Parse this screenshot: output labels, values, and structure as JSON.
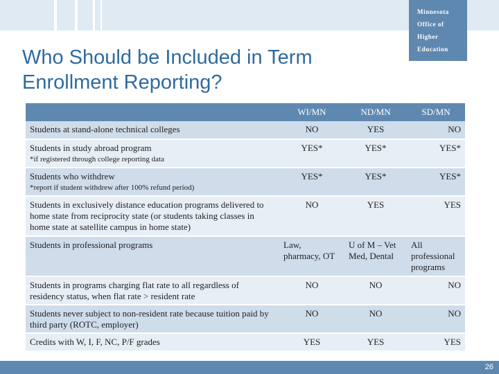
{
  "logo": {
    "line1": "Minnesota",
    "line2": "Office of",
    "line3": "Higher",
    "line4": "Education"
  },
  "title": {
    "line1": "Who Should be Included in Term",
    "line2": "Enrollment Reporting?"
  },
  "table": {
    "headers": [
      "",
      "WI/MN",
      "ND/MN",
      "SD/MN"
    ],
    "rows": [
      {
        "label": "Students at stand-alone technical colleges",
        "note": "",
        "wi": "NO",
        "nd": "YES",
        "sd": "NO"
      },
      {
        "label": "Students in study abroad program",
        "note": "*if registered through college reporting data",
        "wi": "YES*",
        "nd": "YES*",
        "sd": "YES*"
      },
      {
        "label": "Students who withdrew",
        "note": "*report if student withdrew after 100% refund period)",
        "wi": "YES*",
        "nd": "YES*",
        "sd": "YES*"
      },
      {
        "label": "Students in exclusively distance education programs delivered to home state from reciprocity state (or students taking classes in home state at satellite campus in home state)",
        "note": "",
        "wi": "NO",
        "nd": "YES",
        "sd": "YES"
      },
      {
        "label": "Students in professional programs",
        "note": "",
        "wi": "Law, pharmacy, OT",
        "nd": "U of M – Vet Med, Dental",
        "sd": "All professional programs"
      },
      {
        "label": "Students in programs charging flat rate to all regardless of residency status, when flat rate > resident rate",
        "note": "",
        "wi": "NO",
        "nd": "NO",
        "sd": "NO"
      },
      {
        "label": "Students never subject to non-resident rate because tuition paid by third party (ROTC, employer)",
        "note": "",
        "wi": "NO",
        "nd": "NO",
        "sd": "NO"
      },
      {
        "label": "Credits with W, I, F, NC, P/F grades",
        "note": "",
        "wi": "YES",
        "nd": "YES",
        "sd": "YES"
      }
    ]
  },
  "page_number": "26",
  "colors": {
    "accent": "#5f88b0",
    "title": "#2f6aa0",
    "row_dark": "#cfdcea",
    "row_light": "#e7eef5"
  }
}
